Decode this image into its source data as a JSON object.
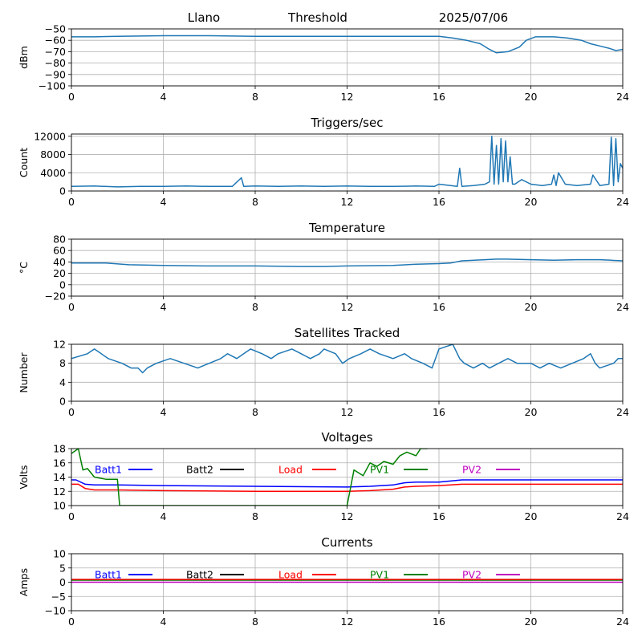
{
  "header": {
    "site": "Llano",
    "center": "Threshold",
    "date": "2025/07/06"
  },
  "legend_entries": [
    {
      "label": "Batt1",
      "color": "#0000ff"
    },
    {
      "label": "Batt2",
      "color": "#000000"
    },
    {
      "label": "Load",
      "color": "#ff0000"
    },
    {
      "label": "PV1",
      "color": "#008000"
    },
    {
      "label": "PV2",
      "color": "#c000c0"
    }
  ],
  "chart_data": [
    {
      "id": "threshold",
      "type": "line",
      "title": "",
      "xlabel": "",
      "ylabel": "dBm",
      "xlim": [
        0,
        24
      ],
      "ylim": [
        -100,
        -50
      ],
      "x_ticks": [
        0,
        4,
        8,
        12,
        16,
        20,
        24
      ],
      "y_ticks": [
        -100,
        -90,
        -80,
        -70,
        -60,
        -50
      ],
      "grid": true,
      "series": [
        {
          "color": "#1f77b4",
          "x": [
            0,
            1,
            2,
            4,
            6,
            8,
            10,
            12,
            14,
            16,
            16.6,
            17.2,
            17.8,
            18.2,
            18.5,
            19.0,
            19.5,
            19.8,
            20.2,
            21.0,
            21.6,
            22.2,
            22.6,
            23.0,
            23.4,
            23.7,
            24
          ],
          "y": [
            -57,
            -57,
            -56.5,
            -56,
            -56,
            -56.5,
            -56.5,
            -56.5,
            -56.5,
            -56.5,
            -58,
            -60,
            -63,
            -68,
            -71,
            -70,
            -66,
            -60,
            -57,
            -57,
            -58,
            -60,
            -63,
            -65,
            -67,
            -69,
            -68
          ]
        }
      ]
    },
    {
      "id": "triggers",
      "type": "line",
      "title": "Triggers/sec",
      "xlabel": "",
      "ylabel": "Count",
      "xlim": [
        0,
        24
      ],
      "ylim": [
        0,
        12500
      ],
      "x_ticks": [
        0,
        4,
        8,
        12,
        16,
        20,
        24
      ],
      "y_ticks": [
        0,
        4000,
        8000,
        12000
      ],
      "grid": true,
      "series": [
        {
          "color": "#1f77b4",
          "x": [
            0,
            1,
            2,
            3,
            4,
            5,
            6,
            7,
            7.4,
            7.5,
            8,
            9,
            10,
            11,
            12,
            13,
            14,
            15,
            15.8,
            16,
            16.8,
            16.9,
            17,
            17.5,
            18,
            18.2,
            18.3,
            18.4,
            18.5,
            18.6,
            18.7,
            18.8,
            18.9,
            19.0,
            19.1,
            19.2,
            19.3,
            19.6,
            20,
            20.5,
            20.9,
            21.0,
            21.1,
            21.2,
            21.5,
            22,
            22.6,
            22.7,
            23,
            23.4,
            23.5,
            23.6,
            23.7,
            23.8,
            23.9,
            24
          ],
          "y": [
            1000,
            1100,
            900,
            1000,
            1000,
            1100,
            1000,
            1000,
            2900,
            1000,
            1100,
            1000,
            1100,
            1000,
            1100,
            1000,
            1000,
            1100,
            1000,
            1500,
            1000,
            5000,
            1000,
            1200,
            1500,
            2000,
            12000,
            1500,
            10000,
            1500,
            11500,
            2000,
            11000,
            2000,
            7500,
            1500,
            1500,
            2500,
            1500,
            1200,
            1500,
            3500,
            1200,
            4000,
            1500,
            1200,
            1500,
            3500,
            1200,
            1500,
            11800,
            1200,
            11500,
            2000,
            6000,
            5000
          ]
        }
      ]
    },
    {
      "id": "temperature",
      "type": "line",
      "title": "Temperature",
      "xlabel": "",
      "ylabel": "°C",
      "xlim": [
        0,
        24
      ],
      "ylim": [
        -20,
        80
      ],
      "x_ticks": [
        0,
        4,
        8,
        12,
        16,
        20,
        24
      ],
      "y_ticks": [
        -20,
        0,
        20,
        40,
        60,
        80
      ],
      "grid": true,
      "series": [
        {
          "color": "#1f77b4",
          "x": [
            0,
            1.5,
            2.5,
            4,
            6,
            8,
            10,
            11,
            12,
            14,
            15,
            16,
            16.5,
            17,
            18,
            18.5,
            19,
            20,
            21,
            22,
            23,
            23.5,
            24
          ],
          "y": [
            38,
            38,
            35,
            34,
            33,
            33,
            32,
            32,
            33,
            34,
            36,
            37,
            38,
            42,
            44,
            45,
            45,
            44,
            43,
            44,
            44,
            43,
            42
          ]
        }
      ]
    },
    {
      "id": "satellites",
      "type": "line",
      "title": "Satellites Tracked",
      "xlabel": "",
      "ylabel": "Number",
      "xlim": [
        0,
        24
      ],
      "ylim": [
        0,
        12
      ],
      "x_ticks": [
        0,
        4,
        8,
        12,
        16,
        20,
        24
      ],
      "y_ticks": [
        0,
        4,
        8,
        12
      ],
      "grid": true,
      "series": [
        {
          "color": "#1f77b4",
          "x": [
            0,
            0.7,
            1.0,
            1.3,
            1.6,
            2.2,
            2.6,
            2.9,
            3.1,
            3.3,
            3.7,
            4.3,
            4.9,
            5.5,
            6.0,
            6.5,
            6.8,
            7.2,
            7.5,
            7.8,
            8.3,
            8.7,
            9.0,
            9.6,
            10.0,
            10.4,
            10.8,
            11.0,
            11.5,
            11.8,
            12.1,
            12.6,
            13.0,
            13.4,
            14.0,
            14.5,
            14.8,
            15.3,
            15.7,
            16.0,
            16.6,
            16.9,
            17.1,
            17.5,
            17.9,
            18.2,
            18.6,
            19.0,
            19.4,
            20.0,
            20.4,
            20.8,
            21.3,
            21.8,
            22.3,
            22.6,
            22.8,
            23.0,
            23.6,
            23.8,
            24
          ],
          "y": [
            9,
            10,
            11,
            10,
            9,
            8,
            7,
            7,
            6,
            7,
            8,
            9,
            8,
            7,
            8,
            9,
            10,
            9,
            10,
            11,
            10,
            9,
            10,
            11,
            10,
            9,
            10,
            11,
            10,
            8,
            9,
            10,
            11,
            10,
            9,
            10,
            9,
            8,
            7,
            11,
            12,
            9,
            8,
            7,
            8,
            7,
            8,
            9,
            8,
            8,
            7,
            8,
            7,
            8,
            9,
            10,
            8,
            7,
            8,
            9,
            9
          ]
        }
      ]
    },
    {
      "id": "voltages",
      "type": "line",
      "title": "Voltages",
      "xlabel": "",
      "ylabel": "Volts",
      "xlim": [
        0,
        24
      ],
      "ylim": [
        10,
        18
      ],
      "x_ticks": [
        0,
        4,
        8,
        12,
        16,
        20,
        24
      ],
      "y_ticks": [
        10,
        12,
        14,
        16,
        18
      ],
      "grid": true,
      "legend": "inside-top",
      "series": [
        {
          "name": "Batt1",
          "color": "#0000ff",
          "x": [
            0,
            0.2,
            0.6,
            1,
            2,
            4,
            8,
            12,
            13,
            14,
            14.5,
            15,
            16,
            17,
            20,
            24
          ],
          "y": [
            13.6,
            13.6,
            13.0,
            12.9,
            12.9,
            12.8,
            12.7,
            12.6,
            12.7,
            12.9,
            13.2,
            13.3,
            13.3,
            13.6,
            13.6,
            13.6
          ]
        },
        {
          "name": "Load",
          "color": "#ff0000",
          "x": [
            0,
            0.3,
            0.6,
            1,
            2,
            4,
            8,
            12,
            13,
            14,
            14.5,
            15,
            16,
            17,
            20,
            24
          ],
          "y": [
            13.0,
            13.0,
            12.4,
            12.2,
            12.2,
            12.1,
            12.0,
            12.0,
            12.1,
            12.3,
            12.6,
            12.7,
            12.8,
            13.0,
            13.0,
            13.0
          ]
        },
        {
          "name": "PV1",
          "color": "#008000",
          "x": [
            0,
            0.3,
            0.5,
            0.7,
            1.0,
            1.5,
            2.0,
            2.1,
            12.0,
            12.3,
            12.7,
            13.0,
            13.3,
            13.6,
            14.0,
            14.3,
            14.6,
            15.0,
            15.2,
            15.5
          ],
          "y": [
            17.3,
            18.0,
            15.0,
            15.2,
            14.0,
            13.7,
            13.7,
            10.0,
            10.0,
            15.0,
            14.2,
            16.0,
            15.5,
            16.2,
            15.8,
            17.0,
            17.5,
            17.0,
            18.0,
            18.0
          ]
        }
      ]
    },
    {
      "id": "currents",
      "type": "line",
      "title": "Currents",
      "xlabel": "",
      "ylabel": "Amps",
      "xlim": [
        0,
        24
      ],
      "ylim": [
        -10,
        10
      ],
      "x_ticks": [
        0,
        4,
        8,
        12,
        16,
        20,
        24
      ],
      "y_ticks": [
        -10,
        -5,
        0,
        5,
        10
      ],
      "grid": true,
      "legend": "inside-top",
      "series": [
        {
          "name": "PV1",
          "color": "#008000",
          "x": [
            0,
            24
          ],
          "y": [
            0.7,
            0.7
          ]
        },
        {
          "name": "Load",
          "color": "#ff0000",
          "x": [
            0,
            24
          ],
          "y": [
            1.0,
            1.0
          ]
        },
        {
          "name": "PV2",
          "color": "#c000c0",
          "x": [
            0,
            24
          ],
          "y": [
            0.0,
            0.0
          ]
        }
      ]
    }
  ]
}
